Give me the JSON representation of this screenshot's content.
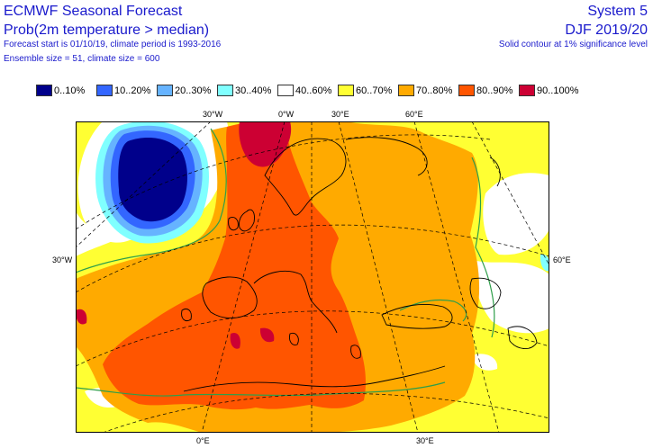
{
  "header": {
    "title": "ECMWF Seasonal Forecast",
    "subtitle": "Prob(2m temperature > median)",
    "forecast_line": "Forecast start is 01/10/19, climate period is 1993-2016",
    "ensemble_line": "Ensemble size = 51, climate size = 600",
    "system": "System 5",
    "season": "DJF 2019/20",
    "significance": "Solid contour at 1% significance level"
  },
  "legend": [
    {
      "label": "0..10%",
      "color": "#00008b"
    },
    {
      "label": "10..20%",
      "color": "#3366ff"
    },
    {
      "label": "20..30%",
      "color": "#66b3ff"
    },
    {
      "label": "30..40%",
      "color": "#80ffff"
    },
    {
      "label": "40..60%",
      "color": "#ffffff"
    },
    {
      "label": "60..70%",
      "color": "#ffff33"
    },
    {
      "label": "70..80%",
      "color": "#ffaa00"
    },
    {
      "label": "80..90%",
      "color": "#ff5500"
    },
    {
      "label": "90..100%",
      "color": "#cc0033"
    }
  ],
  "ticks": {
    "top": [
      "30°W",
      "0°W",
      "30°E",
      "60°E"
    ],
    "left": "30°W",
    "right": "60°E",
    "bottom": [
      "0°E",
      "30°E"
    ]
  },
  "colors": {
    "header_text": "#1a1acc",
    "coastline": "#000000",
    "significance_contour": "#2e9e4a",
    "graticule": "#000000"
  }
}
